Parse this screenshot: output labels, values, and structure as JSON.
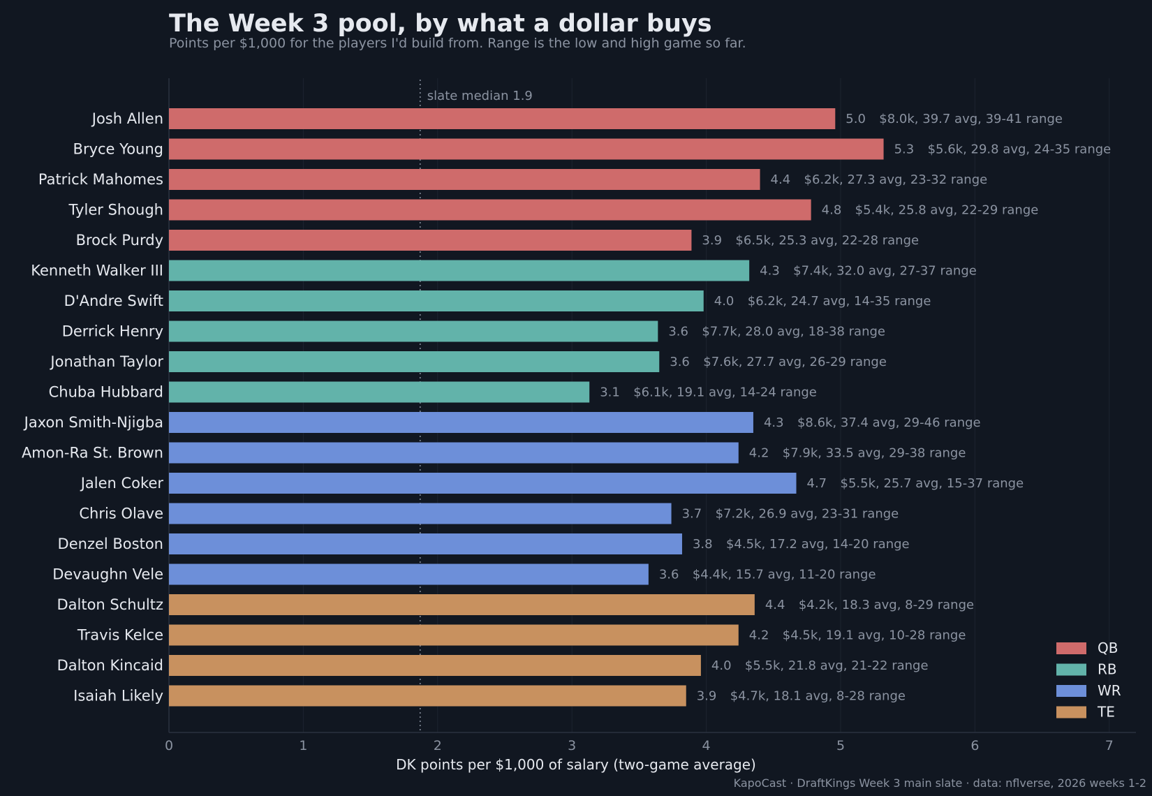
{
  "title": "The Week 3 pool, by what a dollar buys",
  "subtitle": "Points per $1,000 for the players I'd build from. Range is the low and high game so far.",
  "source": "KapoCast · DraftKings Week 3 main slate · data: nflverse, 2026 weeks 1-2",
  "colors": {
    "background": "#111721",
    "QB": "#cf6b6b",
    "RB": "#62b3aa",
    "WR": "#6d8fd9",
    "TE": "#c8915f",
    "text": "#e6e9ef",
    "muted": "#8b93a1",
    "grid": "#1d2430",
    "median_line": "#8b93a1"
  },
  "chart_data": {
    "type": "bar",
    "orientation": "horizontal",
    "title": "The Week 3 pool, by what a dollar buys",
    "subtitle": "Points per $1,000 for the players I'd build from. Range is the low and high game so far.",
    "xlabel": "DK points per $1,000 of salary (two-game average)",
    "ylabel": "",
    "xlim": [
      0,
      7.2
    ],
    "xticks": [
      0,
      1,
      2,
      3,
      4,
      5,
      6,
      7
    ],
    "grid": true,
    "legend_position": "bottom-right",
    "reference_line": {
      "value": 1.87,
      "label": "slate median 1.9"
    },
    "series": [
      {
        "name": "QB"
      },
      {
        "name": "RB"
      },
      {
        "name": "WR"
      },
      {
        "name": "TE"
      }
    ],
    "bars": [
      {
        "player": "Josh Allen",
        "position": "QB",
        "value": 4.96,
        "value_label": "5.0",
        "detail": "$8.0k, 39.7 avg, 39-41 range"
      },
      {
        "player": "Bryce Young",
        "position": "QB",
        "value": 5.32,
        "value_label": "5.3",
        "detail": "$5.6k, 29.8 avg, 24-35 range"
      },
      {
        "player": "Patrick Mahomes",
        "position": "QB",
        "value": 4.4,
        "value_label": "4.4",
        "detail": "$6.2k, 27.3 avg, 23-32 range"
      },
      {
        "player": "Tyler Shough",
        "position": "QB",
        "value": 4.78,
        "value_label": "4.8",
        "detail": "$5.4k, 25.8 avg, 22-29 range"
      },
      {
        "player": "Brock Purdy",
        "position": "QB",
        "value": 3.89,
        "value_label": "3.9",
        "detail": "$6.5k, 25.3 avg, 22-28 range"
      },
      {
        "player": "Kenneth Walker III",
        "position": "RB",
        "value": 4.32,
        "value_label": "4.3",
        "detail": "$7.4k, 32.0 avg, 27-37 range"
      },
      {
        "player": "D'Andre Swift",
        "position": "RB",
        "value": 3.98,
        "value_label": "4.0",
        "detail": "$6.2k, 24.7 avg, 14-35 range"
      },
      {
        "player": "Derrick Henry",
        "position": "RB",
        "value": 3.64,
        "value_label": "3.6",
        "detail": "$7.7k, 28.0 avg, 18-38 range"
      },
      {
        "player": "Jonathan Taylor",
        "position": "RB",
        "value": 3.65,
        "value_label": "3.6",
        "detail": "$7.6k, 27.7 avg, 26-29 range"
      },
      {
        "player": "Chuba Hubbard",
        "position": "RB",
        "value": 3.13,
        "value_label": "3.1",
        "detail": "$6.1k, 19.1 avg, 14-24 range"
      },
      {
        "player": "Jaxon Smith-Njigba",
        "position": "WR",
        "value": 4.35,
        "value_label": "4.3",
        "detail": "$8.6k, 37.4 avg, 29-46 range"
      },
      {
        "player": "Amon-Ra St. Brown",
        "position": "WR",
        "value": 4.24,
        "value_label": "4.2",
        "detail": "$7.9k, 33.5 avg, 29-38 range"
      },
      {
        "player": "Jalen Coker",
        "position": "WR",
        "value": 4.67,
        "value_label": "4.7",
        "detail": "$5.5k, 25.7 avg, 15-37 range"
      },
      {
        "player": "Chris Olave",
        "position": "WR",
        "value": 3.74,
        "value_label": "3.7",
        "detail": "$7.2k, 26.9 avg, 23-31 range"
      },
      {
        "player": "Denzel Boston",
        "position": "WR",
        "value": 3.82,
        "value_label": "3.8",
        "detail": "$4.5k, 17.2 avg, 14-20 range"
      },
      {
        "player": "Devaughn Vele",
        "position": "WR",
        "value": 3.57,
        "value_label": "3.6",
        "detail": "$4.4k, 15.7 avg, 11-20 range"
      },
      {
        "player": "Dalton Schultz",
        "position": "TE",
        "value": 4.36,
        "value_label": "4.4",
        "detail": "$4.2k, 18.3 avg, 8-29 range"
      },
      {
        "player": "Travis Kelce",
        "position": "TE",
        "value": 4.24,
        "value_label": "4.2",
        "detail": "$4.5k, 19.1 avg, 10-28 range"
      },
      {
        "player": "Dalton Kincaid",
        "position": "TE",
        "value": 3.96,
        "value_label": "4.0",
        "detail": "$5.5k, 21.8 avg, 21-22 range"
      },
      {
        "player": "Isaiah Likely",
        "position": "TE",
        "value": 3.85,
        "value_label": "3.9",
        "detail": "$4.7k, 18.1 avg, 8-28 range"
      }
    ]
  }
}
